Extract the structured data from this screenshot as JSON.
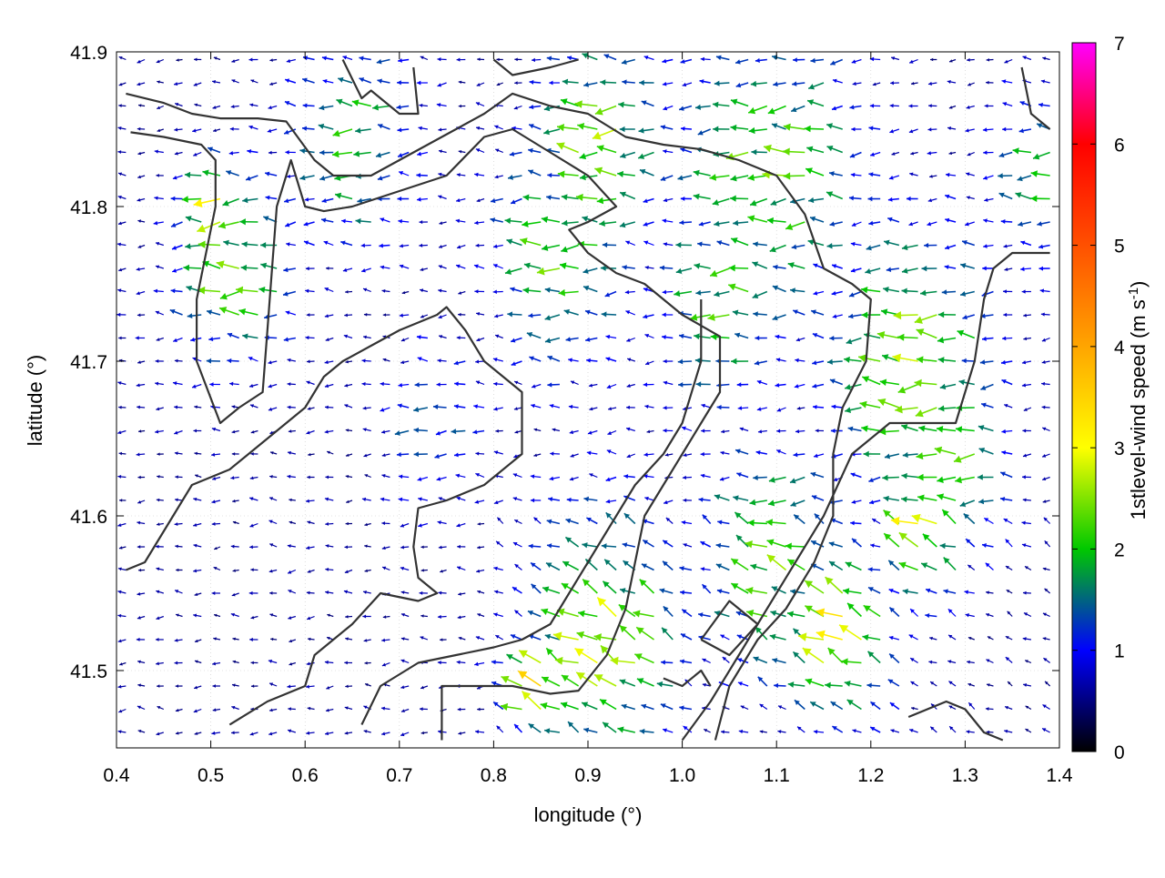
{
  "chart_data": {
    "type": "vector-field",
    "xlabel": "longitude (°)",
    "ylabel": "latitude (°)",
    "colorbar_label": "1stlevel-wind speed (m s-1)",
    "colorbar_label_parts": {
      "main": "1stlevel-wind speed (m s",
      "sup": "-1",
      "close": ")"
    },
    "xlim": [
      0.4,
      1.4
    ],
    "ylim": [
      41.45,
      41.9
    ],
    "xticks": [
      0.4,
      0.5,
      0.6,
      0.7,
      0.8,
      0.9,
      1.0,
      1.1,
      1.2,
      1.3,
      1.4
    ],
    "xtick_labels": [
      "0.4",
      "0.5",
      "0.6",
      "0.7",
      "0.8",
      "0.9",
      "1.0",
      "1.1",
      "1.2",
      "1.3",
      "1.4"
    ],
    "yticks": [
      41.5,
      41.6,
      41.7,
      41.8,
      41.9
    ],
    "ytick_labels": [
      "41.5",
      "41.6",
      "41.7",
      "41.8",
      "41.9"
    ],
    "clim": [
      0,
      7
    ],
    "cticks": [
      0,
      1,
      2,
      3,
      4,
      5,
      6,
      7
    ],
    "ctick_labels": [
      "0",
      "1",
      "2",
      "3",
      "4",
      "5",
      "6",
      "7"
    ],
    "colormap": [
      "#000000",
      "#0000ff",
      "#00c800",
      "#ffff00",
      "#ffa500",
      "#ff5000",
      "#ff0000",
      "#ff00ff"
    ],
    "grid": true,
    "grid_resolution_deg": 0.02,
    "prevailing_direction": "westward (from east)",
    "wind_regions": [
      {
        "lon": 0.53,
        "lat": 41.76,
        "speed": 2.2,
        "radius": 0.06
      },
      {
        "lon": 0.51,
        "lat": 41.8,
        "speed": 2.8,
        "radius": 0.03
      },
      {
        "lon": 0.66,
        "lat": 41.84,
        "speed": 2.0,
        "radius": 0.06
      },
      {
        "lon": 0.92,
        "lat": 41.84,
        "speed": 2.5,
        "radius": 0.06
      },
      {
        "lon": 0.88,
        "lat": 41.77,
        "speed": 2.1,
        "radius": 0.07
      },
      {
        "lon": 1.1,
        "lat": 41.82,
        "speed": 2.2,
        "radius": 0.09
      },
      {
        "lon": 1.05,
        "lat": 41.74,
        "speed": 2.0,
        "radius": 0.07
      },
      {
        "lon": 1.25,
        "lat": 41.7,
        "speed": 2.4,
        "radius": 0.08
      },
      {
        "lon": 1.28,
        "lat": 41.64,
        "speed": 2.3,
        "radius": 0.06
      },
      {
        "lon": 0.92,
        "lat": 41.52,
        "speed": 2.5,
        "radius": 0.08
      },
      {
        "lon": 1.1,
        "lat": 41.57,
        "speed": 2.2,
        "radius": 0.07
      },
      {
        "lon": 1.17,
        "lat": 41.52,
        "speed": 3.0,
        "radius": 0.05
      },
      {
        "lon": 1.26,
        "lat": 41.59,
        "speed": 2.8,
        "radius": 0.04
      },
      {
        "lon": 0.85,
        "lat": 41.49,
        "speed": 3.2,
        "radius": 0.03
      },
      {
        "lon": 0.74,
        "lat": 41.66,
        "speed": 1.4,
        "radius": 0.05
      },
      {
        "lon": 1.38,
        "lat": 41.82,
        "speed": 1.8,
        "radius": 0.05
      }
    ],
    "background_speed": 0.6,
    "contours": [
      [
        [
          0.41,
          41.873
        ],
        [
          0.45,
          41.867
        ],
        [
          0.48,
          41.86
        ],
        [
          0.51,
          41.857
        ],
        [
          0.55,
          41.857
        ],
        [
          0.58,
          41.855
        ],
        [
          0.61,
          41.83
        ],
        [
          0.63,
          41.82
        ],
        [
          0.67,
          41.82
        ],
        [
          0.7,
          41.83
        ],
        [
          0.73,
          41.84
        ],
        [
          0.76,
          41.85
        ],
        [
          0.79,
          41.86
        ],
        [
          0.82,
          41.873
        ],
        [
          0.86,
          41.865
        ],
        [
          0.9,
          41.86
        ],
        [
          0.94,
          41.845
        ],
        [
          0.98,
          41.84
        ],
        [
          1.02,
          41.837
        ],
        [
          1.06,
          41.83
        ],
        [
          1.1,
          41.82
        ],
        [
          1.13,
          41.795
        ],
        [
          1.15,
          41.76
        ],
        [
          1.18,
          41.75
        ],
        [
          1.2,
          41.74
        ],
        [
          1.195,
          41.7
        ],
        [
          1.17,
          41.67
        ],
        [
          1.16,
          41.64
        ],
        [
          1.16,
          41.6
        ],
        [
          1.14,
          41.57
        ],
        [
          1.11,
          41.54
        ],
        [
          1.08,
          41.52
        ],
        [
          1.05,
          41.49
        ],
        [
          1.035,
          41.455
        ]
      ],
      [
        [
          0.415,
          41.848
        ],
        [
          0.45,
          41.845
        ],
        [
          0.49,
          41.84
        ],
        [
          0.505,
          41.83
        ],
        [
          0.505,
          41.8
        ],
        [
          0.495,
          41.77
        ],
        [
          0.485,
          41.74
        ],
        [
          0.485,
          41.7
        ],
        [
          0.51,
          41.66
        ],
        [
          0.53,
          41.67
        ],
        [
          0.555,
          41.68
        ],
        [
          0.56,
          41.72
        ],
        [
          0.565,
          41.76
        ],
        [
          0.57,
          41.8
        ],
        [
          0.585,
          41.83
        ],
        [
          0.6,
          41.8
        ],
        [
          0.62,
          41.797
        ],
        [
          0.65,
          41.8
        ],
        [
          0.7,
          41.81
        ],
        [
          0.75,
          41.82
        ],
        [
          0.79,
          41.845
        ],
        [
          0.82,
          41.85
        ],
        [
          0.86,
          41.835
        ],
        [
          0.9,
          41.82
        ],
        [
          0.93,
          41.8
        ],
        [
          0.9,
          41.79
        ],
        [
          0.88,
          41.785
        ],
        [
          0.9,
          41.77
        ],
        [
          0.93,
          41.757
        ],
        [
          0.96,
          41.75
        ],
        [
          1.0,
          41.73
        ],
        [
          1.04,
          41.716
        ],
        [
          1.04,
          41.68
        ],
        [
          1.02,
          41.66
        ],
        [
          1.0,
          41.64
        ],
        [
          0.98,
          41.62
        ],
        [
          0.96,
          41.6
        ],
        [
          0.95,
          41.57
        ],
        [
          0.94,
          41.54
        ],
        [
          0.92,
          41.51
        ],
        [
          0.89,
          41.487
        ],
        [
          0.86,
          41.485
        ],
        [
          0.82,
          41.49
        ],
        [
          0.78,
          41.49
        ],
        [
          0.745,
          41.49
        ],
        [
          0.745,
          41.455
        ]
      ],
      [
        [
          0.41,
          41.565
        ],
        [
          0.43,
          41.57
        ],
        [
          0.46,
          41.6
        ],
        [
          0.48,
          41.62
        ],
        [
          0.52,
          41.63
        ],
        [
          0.56,
          41.65
        ],
        [
          0.6,
          41.67
        ],
        [
          0.62,
          41.69
        ],
        [
          0.64,
          41.7
        ],
        [
          0.67,
          41.71
        ],
        [
          0.7,
          41.72
        ],
        [
          0.74,
          41.73
        ],
        [
          0.75,
          41.735
        ],
        [
          0.77,
          41.72
        ],
        [
          0.79,
          41.7
        ],
        [
          0.83,
          41.68
        ],
        [
          0.83,
          41.64
        ],
        [
          0.79,
          41.62
        ],
        [
          0.75,
          41.61
        ],
        [
          0.72,
          41.605
        ],
        [
          0.715,
          41.58
        ],
        [
          0.72,
          41.56
        ],
        [
          0.74,
          41.55
        ],
        [
          0.72,
          41.545
        ],
        [
          0.68,
          41.55
        ],
        [
          0.65,
          41.53
        ],
        [
          0.61,
          41.51
        ],
        [
          0.6,
          41.49
        ],
        [
          0.56,
          41.48
        ],
        [
          0.52,
          41.465
        ]
      ],
      [
        [
          0.66,
          41.465
        ],
        [
          0.68,
          41.49
        ],
        [
          0.72,
          41.505
        ],
        [
          0.76,
          41.51
        ],
        [
          0.8,
          41.515
        ],
        [
          0.83,
          41.52
        ],
        [
          0.86,
          41.53
        ],
        [
          0.89,
          41.56
        ],
        [
          0.92,
          41.59
        ],
        [
          0.95,
          41.62
        ],
        [
          0.98,
          41.64
        ],
        [
          1.0,
          41.66
        ],
        [
          1.02,
          41.7
        ],
        [
          1.02,
          41.74
        ]
      ],
      [
        [
          1.0,
          41.455
        ],
        [
          1.03,
          41.48
        ],
        [
          1.06,
          41.51
        ],
        [
          1.09,
          41.54
        ],
        [
          1.12,
          41.57
        ],
        [
          1.15,
          41.6
        ],
        [
          1.18,
          41.64
        ],
        [
          1.22,
          41.66
        ],
        [
          1.26,
          41.66
        ],
        [
          1.29,
          41.66
        ],
        [
          1.31,
          41.7
        ],
        [
          1.32,
          41.74
        ],
        [
          1.33,
          41.76
        ],
        [
          1.35,
          41.77
        ],
        [
          1.39,
          41.77
        ]
      ],
      [
        [
          0.715,
          41.89
        ],
        [
          0.72,
          41.86
        ],
        [
          0.7,
          41.86
        ],
        [
          0.67,
          41.875
        ],
        [
          0.66,
          41.87
        ],
        [
          0.64,
          41.895
        ]
      ],
      [
        [
          0.8,
          41.895
        ],
        [
          0.82,
          41.885
        ],
        [
          0.86,
          41.89
        ],
        [
          0.89,
          41.895
        ]
      ],
      [
        [
          1.24,
          41.47
        ],
        [
          1.28,
          41.48
        ],
        [
          1.3,
          41.475
        ],
        [
          1.32,
          41.46
        ],
        [
          1.34,
          41.455
        ]
      ],
      [
        [
          1.36,
          41.89
        ],
        [
          1.37,
          41.86
        ],
        [
          1.39,
          41.85
        ]
      ],
      [
        [
          1.02,
          41.52
        ],
        [
          1.05,
          41.51
        ],
        [
          1.08,
          41.53
        ],
        [
          1.05,
          41.545
        ],
        [
          1.02,
          41.52
        ]
      ],
      [
        [
          0.98,
          41.495
        ],
        [
          1.0,
          41.49
        ],
        [
          1.02,
          41.5
        ],
        [
          1.03,
          41.49
        ]
      ]
    ]
  }
}
